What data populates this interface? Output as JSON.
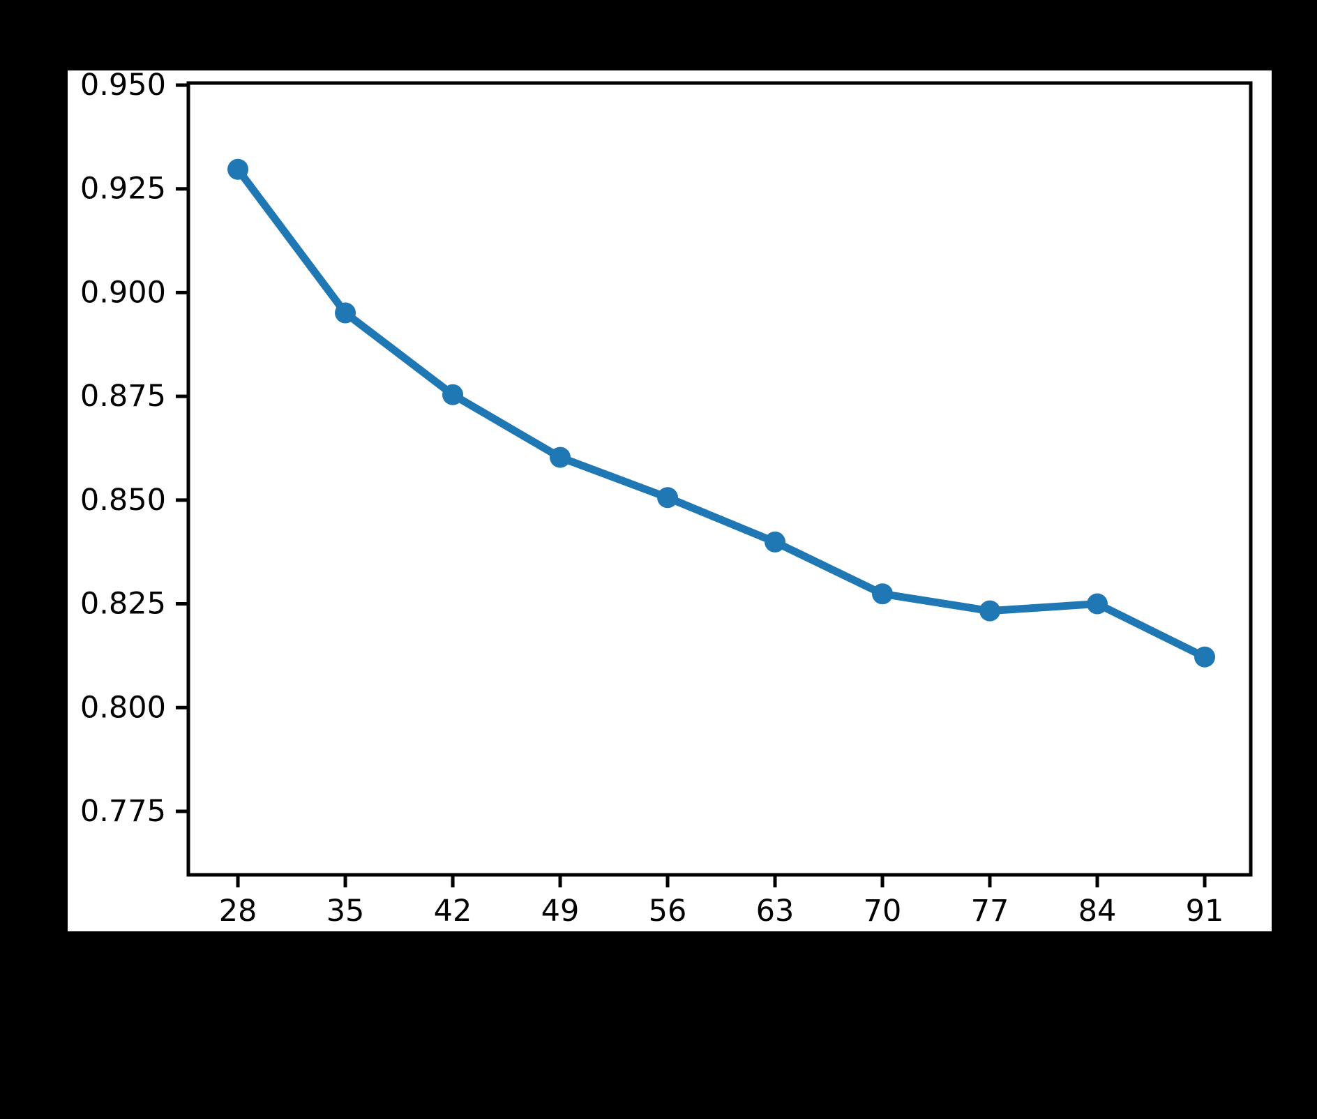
{
  "chart_data": {
    "type": "line",
    "title": "",
    "xlabel": "",
    "ylabel": "",
    "x": [
      28,
      35,
      42,
      49,
      56,
      63,
      70,
      77,
      84,
      91
    ],
    "values": [
      0.9297,
      0.8951,
      0.8754,
      0.8603,
      0.8506,
      0.8399,
      0.8274,
      0.8233,
      0.825,
      0.8122
    ],
    "xlim": [
      24.77,
      94.0
    ],
    "ylim": [
      0.7597,
      0.9505
    ],
    "xticks": [
      28,
      35,
      42,
      49,
      56,
      63,
      70,
      77,
      84,
      91
    ],
    "xtick_labels": [
      "28",
      "35",
      "42",
      "49",
      "56",
      "63",
      "70",
      "77",
      "84",
      "91"
    ],
    "yticks": [
      0.775,
      0.8,
      0.825,
      0.85,
      0.875,
      0.9,
      0.925,
      0.95
    ],
    "ytick_labels": [
      "0.775",
      "0.800",
      "0.825",
      "0.850",
      "0.875",
      "0.900",
      "0.925",
      "0.950"
    ],
    "grid": false,
    "legend": null,
    "marker": "o",
    "colors": {
      "line": "#1f77b4",
      "marker": "#1f77b4",
      "spine": "#000000",
      "tick": "#000000",
      "axes_background": "#ffffff",
      "figure_background": "#ffffff",
      "page_background": "#000000"
    }
  }
}
